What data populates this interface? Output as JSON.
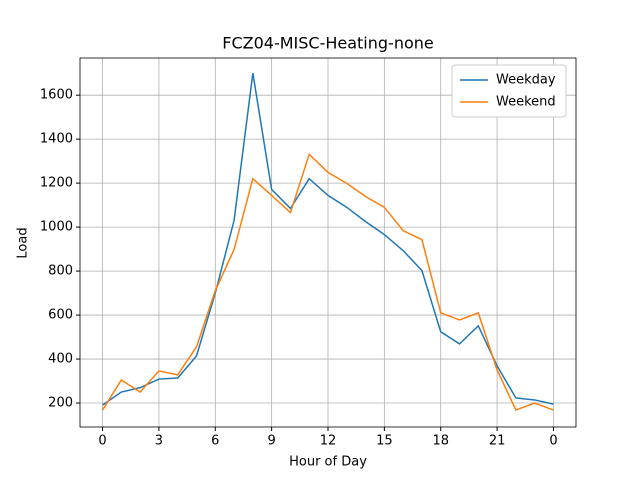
{
  "chart_data": {
    "type": "line",
    "title": "FCZ04-MISC-Heating-none",
    "xlabel": "Hour of Day",
    "ylabel": "Load",
    "x": [
      0,
      1,
      2,
      3,
      4,
      5,
      6,
      7,
      8,
      9,
      10,
      11,
      12,
      13,
      14,
      15,
      16,
      17,
      18,
      19,
      20,
      21,
      22,
      23,
      24
    ],
    "series": [
      {
        "name": "Weekday",
        "color": "#1f77b4",
        "values": [
          191,
          250,
          270,
          309,
          314,
          414,
          700,
          1030,
          1700,
          1171,
          1085,
          1220,
          1144,
          1090,
          1025,
          966,
          893,
          802,
          524,
          469,
          551,
          369,
          223,
          214,
          195
        ]
      },
      {
        "name": "Weekend",
        "color": "#ff7f0e",
        "values": [
          168,
          305,
          250,
          346,
          328,
          455,
          711,
          898,
          1220,
          1144,
          1066,
          1331,
          1249,
          1199,
          1139,
          1090,
          984,
          943,
          610,
          578,
          610,
          350,
          168,
          200,
          168
        ]
      }
    ],
    "xlim": [
      -1.2,
      25.2
    ],
    "xticks": [
      0,
      3,
      6,
      9,
      12,
      15,
      18,
      21,
      {
        "value": 24,
        "label": "0"
      }
    ],
    "ylim": [
      91,
      1769
    ],
    "yticks": [
      200,
      400,
      600,
      800,
      1000,
      1200,
      1400,
      1600
    ],
    "grid": true,
    "legend": "upper right"
  }
}
